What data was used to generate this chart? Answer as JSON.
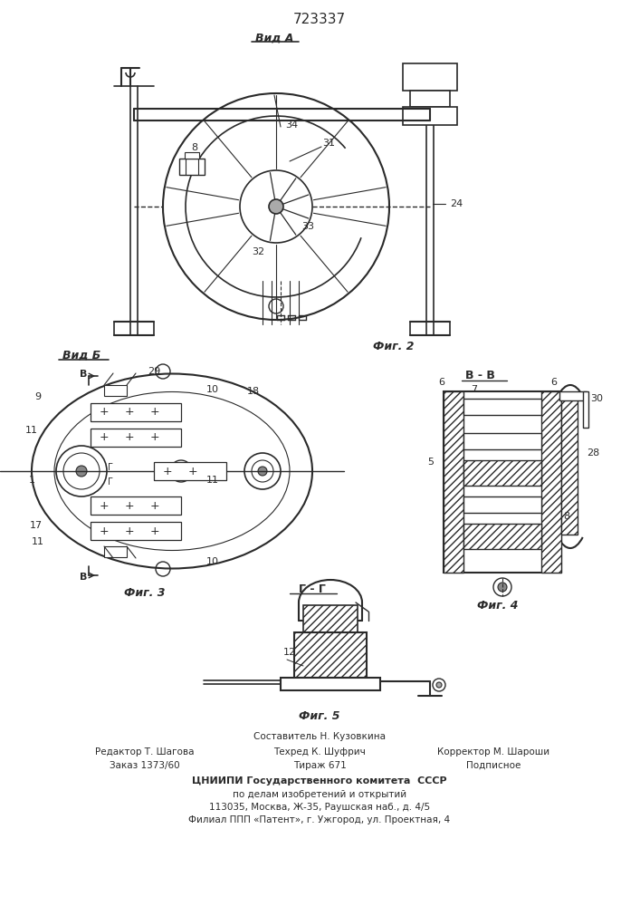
{
  "patent_number": "723337",
  "background_color": "#ffffff",
  "line_color": "#2a2a2a",
  "footer_lines": [
    "Составитель Н. Кузовкина",
    "Редактор Т. Шагова          Техред К. Шуфрич          Корректор М. Шароши",
    "Заказ 1373/60                    Тираж 671                        Подписное",
    "ЦНИИПИ Государственного комитета  СССР",
    "по делам изобретений и открытий",
    "113035, Москва, Ж-35, Раушская наб., д. 4/5",
    "Филиал ППП «Патент», г. Ужгород, ул. Проектная, 4"
  ]
}
